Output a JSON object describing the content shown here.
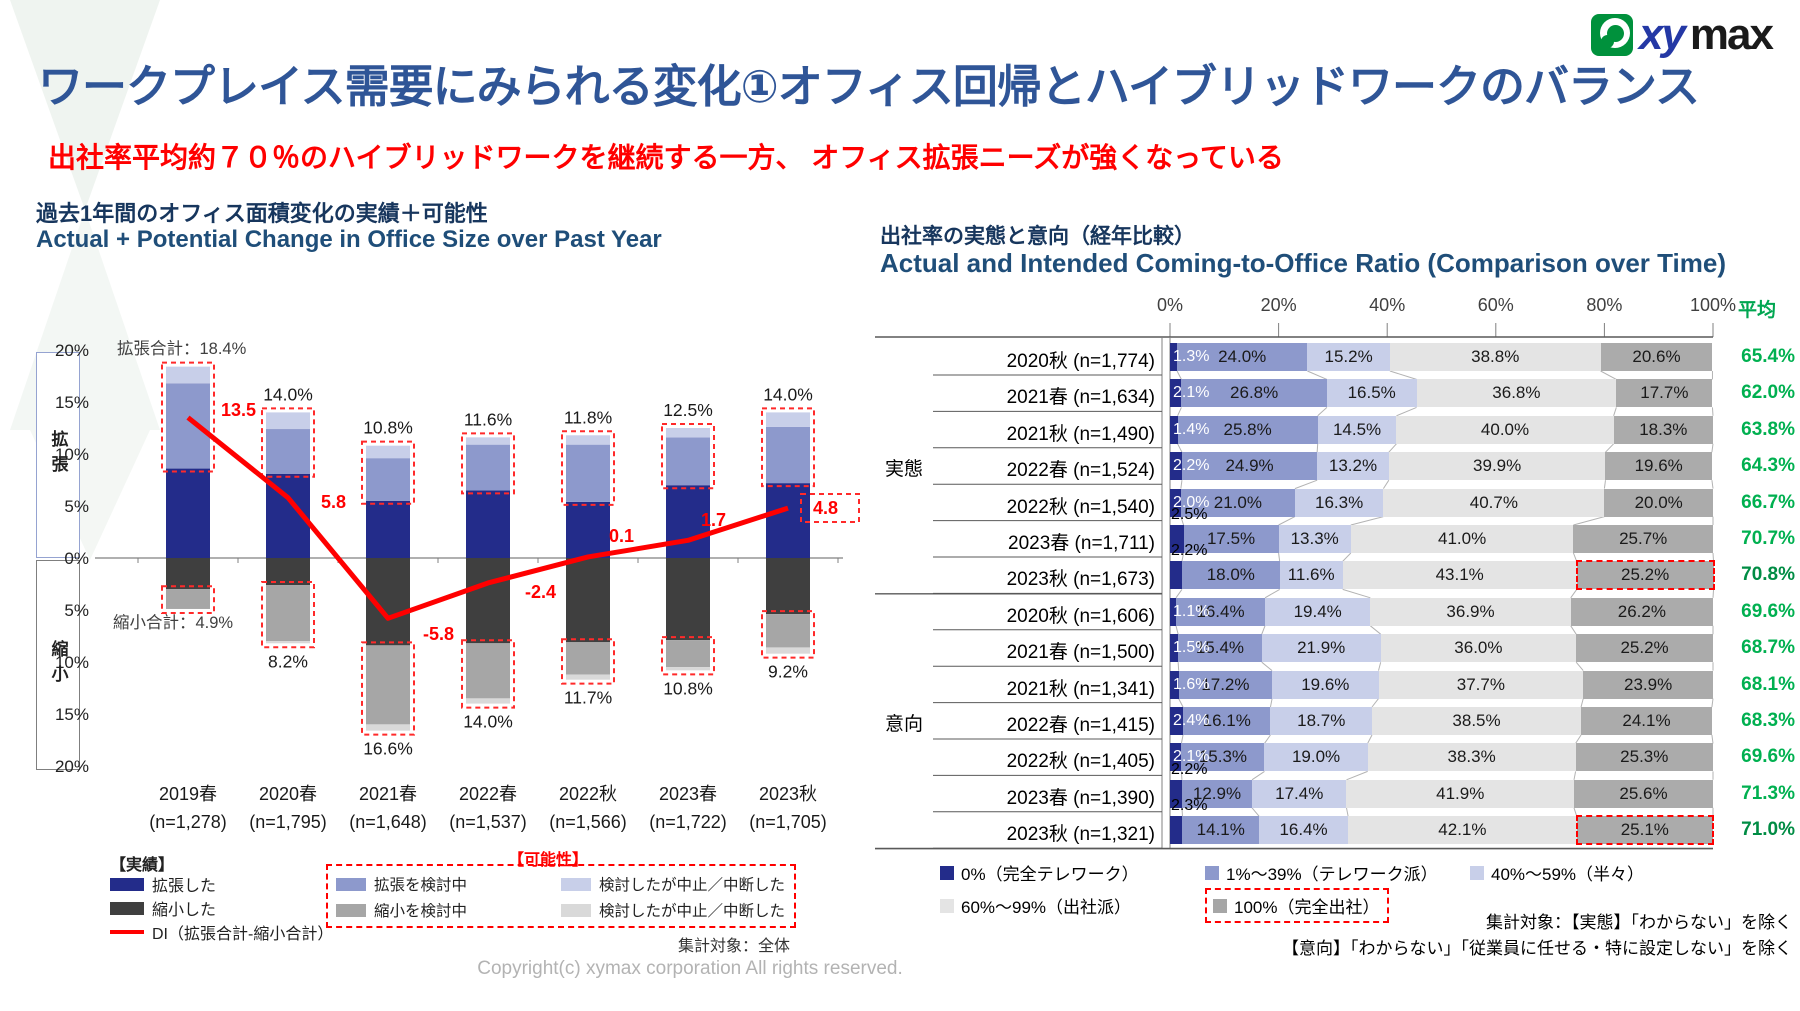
{
  "header": {
    "title": "ワークプレイス需要にみられる変化①オフィス回帰とハイブリッドワークのバランス",
    "subtitle": "出社率平均約７０％のハイブリッドワークを継続する一方、 オフィス拡張ニーズが強くなっている",
    "logo": {
      "icon": "xymax-swirl-icon",
      "xy": "xy",
      "max": "max"
    }
  },
  "left_panel": {
    "title_jp": "過去1年間のオフィス面積変化の実績＋可能性",
    "title_en": "Actual + Potential Change in Office Size over Past Year",
    "axis_group_labels": {
      "expand": "拡張",
      "shrink": "縮小"
    },
    "legend": {
      "actual_header": "【実績】",
      "potential_header": "【可能性】",
      "actual_items": [
        {
          "label": "拡張した",
          "swatch": "box",
          "color": "#232C8A"
        },
        {
          "label": "縮小した",
          "swatch": "box",
          "color": "#3F3F3F"
        },
        {
          "label": "DI（拡張合計-縮小合計）",
          "swatch": "line",
          "color": "#FF0000"
        }
      ],
      "potential_items": [
        {
          "label": "拡張を検討中",
          "color": "#8D99CC"
        },
        {
          "label": "検討したが中止／中断した",
          "color": "#C8CFE9"
        },
        {
          "label": "縮小を検討中",
          "color": "#A6A6A6"
        },
        {
          "label": "検討したが中止／中断した",
          "color": "#D9D9D9"
        }
      ]
    },
    "footnote": "集計対象：全体"
  },
  "right_panel": {
    "title_jp": "出社率の実態と意向（経年比較）",
    "title_en": "Actual and Intended Coming-to-Office Ratio (Comparison over Time)",
    "avg_header": "平均",
    "legend_items": [
      {
        "label": "0%（完全テレワーク）",
        "color": "#232C8A",
        "highlight": false
      },
      {
        "label": "1%～39%（テレワーク派）",
        "color": "#8D99CC",
        "highlight": false
      },
      {
        "label": "40%～59%（半々）",
        "color": "#C8CFE9",
        "highlight": false
      },
      {
        "label": "60%～99%（出社派）",
        "color": "#E4E4E4",
        "highlight": false
      },
      {
        "label": "100%（完全出社）",
        "color": "#A6A6A6",
        "highlight": true
      }
    ],
    "footnote_line1": "集計対象：【実態】「わからない」を除く",
    "footnote_line2": "【意向】「わからない」「従業員に任せる・特に設定しない」を除く"
  },
  "footer": {
    "copyright": "Copyright(c) xymax corporation All rights reserved."
  },
  "colors": {
    "title_blue": "#2F5597",
    "section_navy": "#17365D",
    "accent_red": "#FF0000",
    "avg_green": "#00B050",
    "avg_green_dark": "#008C44",
    "up_segments": [
      "#232C8A",
      "#8D99CC",
      "#C8CFE9"
    ],
    "down_segments": [
      "#3F3F3F",
      "#A6A6A6",
      "#D9D9D9"
    ],
    "di_line": "#FF0000",
    "right_segments": [
      "#232C8A",
      "#8D99CC",
      "#C8CFE9",
      "#E4E4E4",
      "#ABABAB"
    ]
  },
  "chart_data": [
    {
      "type": "bar",
      "title": "過去1年間のオフィス面積変化の実績＋可能性 / Actual + Potential Change in Office Size over Past Year",
      "categories": [
        "2019春",
        "2020春",
        "2021春",
        "2022春",
        "2022秋",
        "2023春",
        "2023秋"
      ],
      "sample_sizes": [
        "(n=1,278)",
        "(n=1,795)",
        "(n=1,648)",
        "(n=1,537)",
        "(n=1,566)",
        "(n=1,722)",
        "(n=1,705)"
      ],
      "ylim": [
        -20,
        20
      ],
      "y_tick_labels": [
        "20%",
        "15%",
        "10%",
        "5%",
        "0%",
        "5%",
        "10%",
        "15%",
        "20%"
      ],
      "up_series": [
        {
          "name": "拡張した",
          "values": [
            8.6,
            8.1,
            5.5,
            6.5,
            5.4,
            7.0,
            7.2
          ]
        },
        {
          "name": "拡張を検討中",
          "values": [
            8.2,
            4.3,
            4.1,
            4.4,
            5.5,
            4.6,
            5.4
          ]
        },
        {
          "name": "検討したが中止／中断した",
          "values": [
            1.6,
            1.6,
            1.2,
            0.7,
            0.9,
            0.9,
            1.4
          ]
        }
      ],
      "down_series": [
        {
          "name": "縮小した",
          "values": [
            3.0,
            2.6,
            8.4,
            8.2,
            8.1,
            7.9,
            5.4
          ]
        },
        {
          "name": "縮小を検討中",
          "values": [
            1.9,
            5.4,
            7.6,
            5.3,
            3.1,
            2.6,
            3.2
          ]
        },
        {
          "name": "検討したが中止／中断した",
          "values": [
            0.0,
            0.2,
            0.6,
            0.5,
            0.5,
            0.3,
            0.6
          ]
        }
      ],
      "expand_total_labels": [
        "",
        "14.0%",
        "10.8%",
        "11.6%",
        "11.8%",
        "12.5%",
        "14.0%"
      ],
      "shrink_total_labels": [
        "",
        "8.2%",
        "16.6%",
        "14.0%",
        "11.7%",
        "10.8%",
        "9.2%"
      ],
      "annotation_expand": "拡張合計：18.4%",
      "annotation_shrink": "縮小合計：4.9%",
      "di_line": {
        "name": "DI（拡張合計-縮小合計）",
        "values": [
          13.5,
          5.8,
          -5.8,
          -2.4,
          0.1,
          1.7,
          4.8
        ]
      }
    },
    {
      "type": "stacked_bar_horizontal",
      "title": "出社率の実態と意向（経年比較） / Actual and Intended Coming-to-Office Ratio (Comparison over Time)",
      "x_ticks": [
        "0%",
        "20%",
        "40%",
        "60%",
        "80%",
        "100%"
      ],
      "xlim": [
        0,
        100
      ],
      "segments": [
        "0%（完全テレワーク）",
        "1%～39%（テレワーク派）",
        "40%～59%（半々）",
        "60%～99%（出社派）",
        "100%（完全出社）"
      ],
      "groups": [
        {
          "label": "実態",
          "rows": [
            {
              "label": "2020秋 (n=1,774)",
              "values": [
                1.3,
                24.0,
                15.2,
                38.8,
                20.6
              ],
              "avg": "65.4%",
              "first_above": false,
              "highlight": false
            },
            {
              "label": "2021春 (n=1,634)",
              "values": [
                2.1,
                26.8,
                16.5,
                36.8,
                17.7
              ],
              "avg": "62.0%",
              "first_above": false,
              "highlight": false
            },
            {
              "label": "2021秋 (n=1,490)",
              "values": [
                1.4,
                25.8,
                14.5,
                40.0,
                18.3
              ],
              "avg": "63.8%",
              "first_above": false,
              "highlight": false
            },
            {
              "label": "2022春 (n=1,524)",
              "values": [
                2.2,
                24.9,
                13.2,
                39.9,
                19.6
              ],
              "avg": "64.3%",
              "first_above": false,
              "highlight": false
            },
            {
              "label": "2022秋 (n=1,540)",
              "values": [
                2.0,
                21.0,
                16.3,
                40.7,
                20.0
              ],
              "avg": "66.7%",
              "first_above": false,
              "highlight": false
            },
            {
              "label": "2023春 (n=1,711)",
              "values": [
                2.5,
                17.5,
                13.3,
                41.0,
                25.7
              ],
              "avg": "70.7%",
              "first_above": true,
              "highlight": false
            },
            {
              "label": "2023秋 (n=1,673)",
              "values": [
                2.2,
                18.0,
                11.6,
                43.1,
                25.2
              ],
              "avg": "70.8%",
              "first_above": true,
              "highlight": true
            }
          ]
        },
        {
          "label": "意向",
          "rows": [
            {
              "label": "2020秋 (n=1,606)",
              "values": [
                1.1,
                16.4,
                19.4,
                36.9,
                26.2
              ],
              "avg": "69.6%",
              "first_above": false,
              "highlight": false
            },
            {
              "label": "2021春 (n=1,500)",
              "values": [
                1.5,
                15.4,
                21.9,
                36.0,
                25.2
              ],
              "avg": "68.7%",
              "first_above": false,
              "highlight": false
            },
            {
              "label": "2021秋 (n=1,341)",
              "values": [
                1.6,
                17.2,
                19.6,
                37.7,
                23.9
              ],
              "avg": "68.1%",
              "first_above": false,
              "highlight": false
            },
            {
              "label": "2022春 (n=1,415)",
              "values": [
                2.4,
                16.1,
                18.7,
                38.5,
                24.1
              ],
              "avg": "68.3%",
              "first_above": false,
              "highlight": false
            },
            {
              "label": "2022秋 (n=1,405)",
              "values": [
                2.1,
                15.3,
                19.0,
                38.3,
                25.3
              ],
              "avg": "69.6%",
              "first_above": false,
              "highlight": false
            },
            {
              "label": "2023春 (n=1,390)",
              "values": [
                2.2,
                12.9,
                17.4,
                41.9,
                25.6
              ],
              "avg": "71.3%",
              "first_above": true,
              "highlight": false
            },
            {
              "label": "2023秋 (n=1,321)",
              "values": [
                2.3,
                14.1,
                16.4,
                42.1,
                25.1
              ],
              "avg": "71.0%",
              "first_above": true,
              "highlight": true
            }
          ]
        }
      ]
    }
  ]
}
